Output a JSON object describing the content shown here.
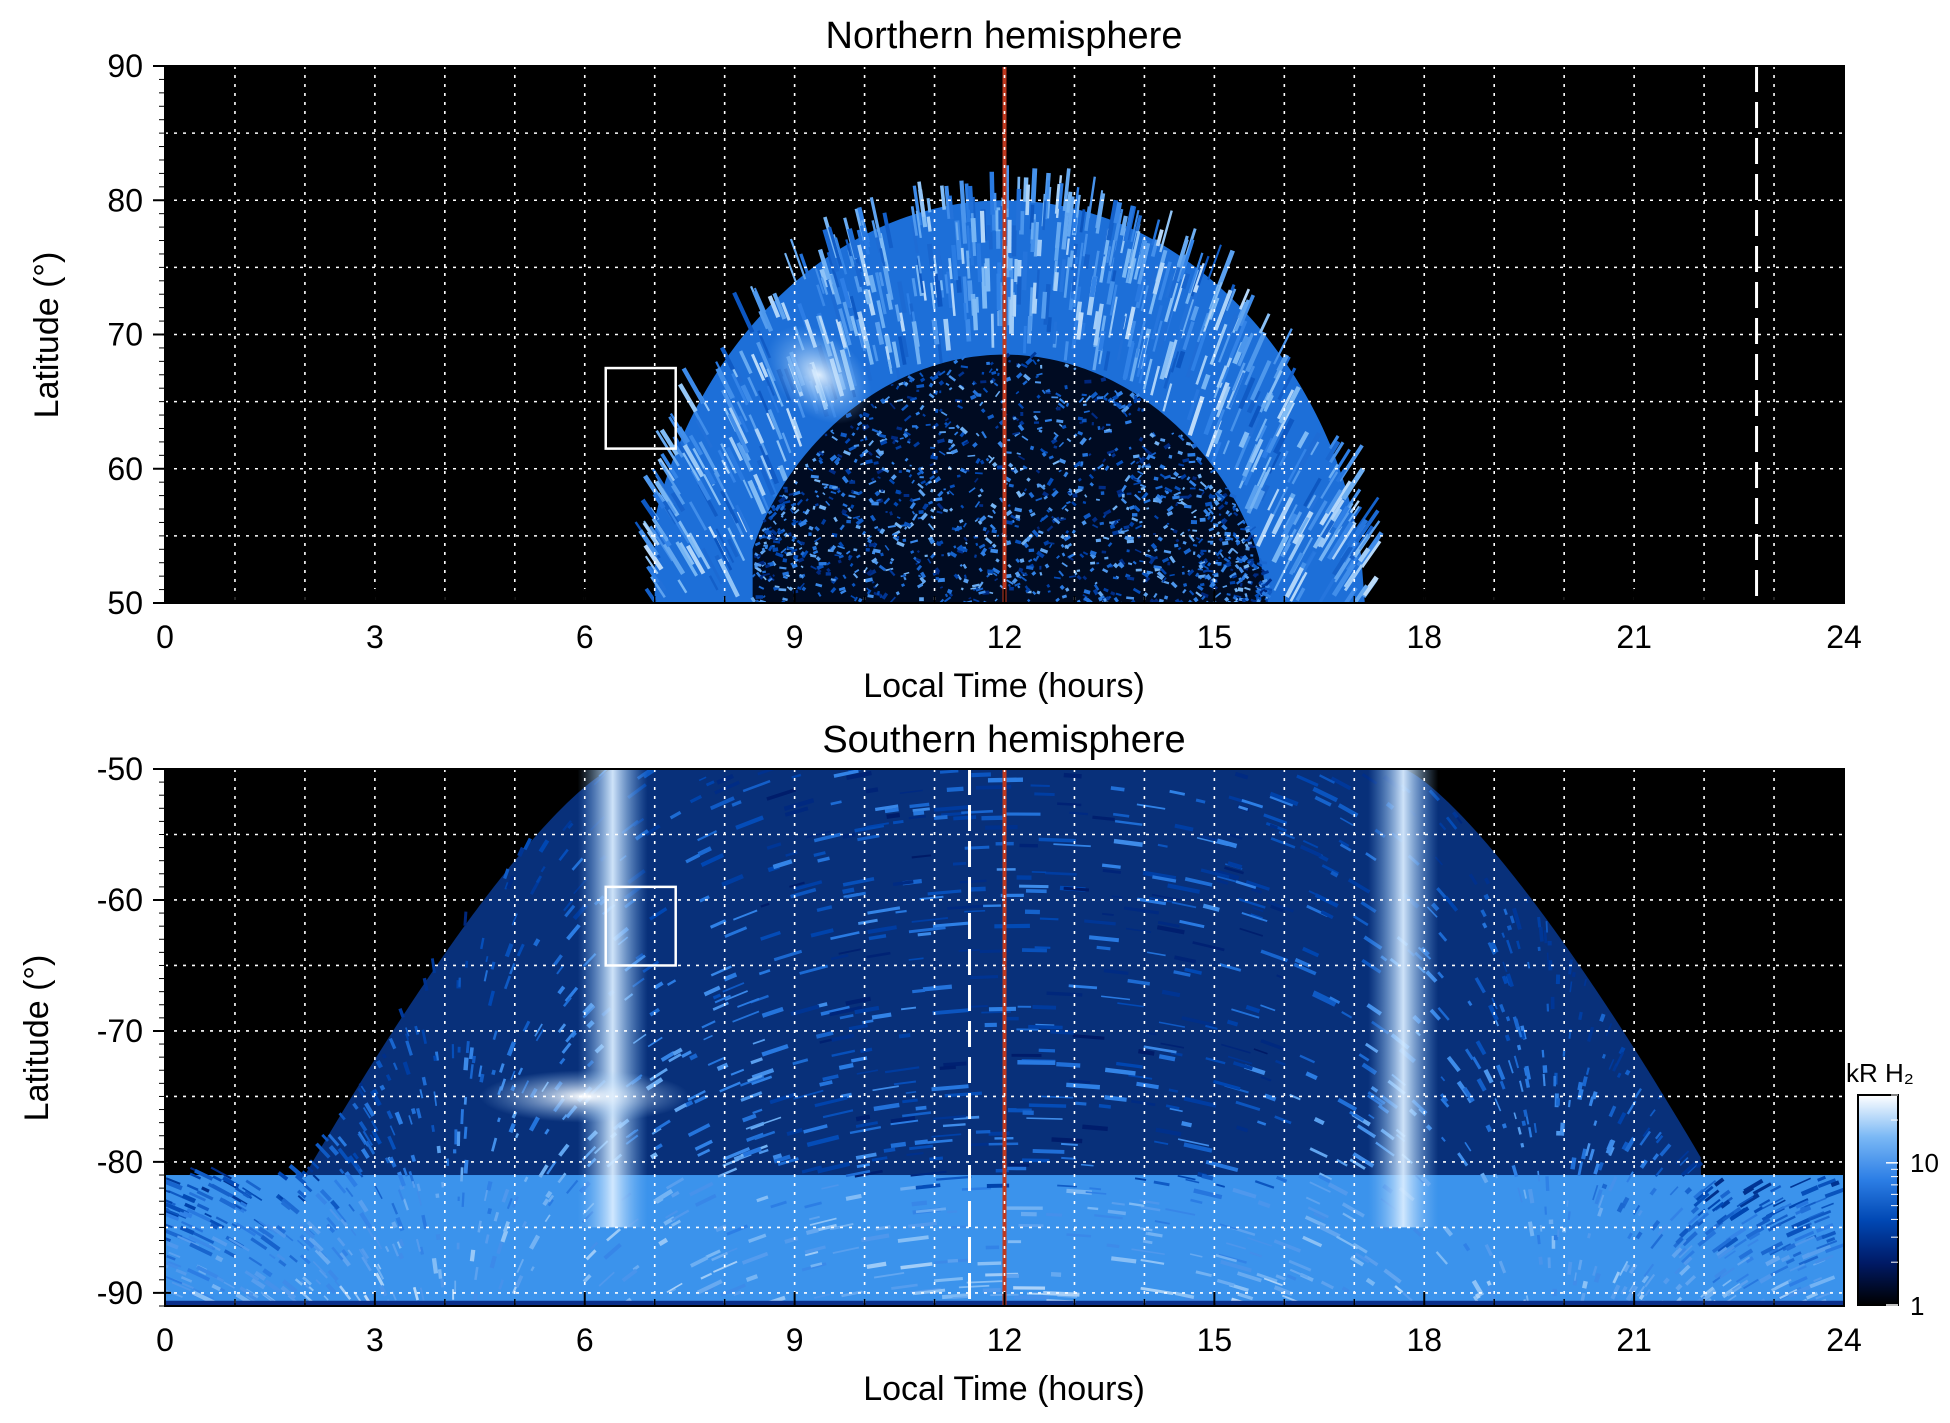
{
  "chart_data": [
    {
      "type": "heatmap",
      "title": "Northern hemisphere",
      "xlabel": "Local Time (hours)",
      "ylabel": "Latitude (°)",
      "xlim": [
        0,
        24
      ],
      "ylim": [
        50,
        90
      ],
      "x_ticks": [
        "0",
        "3",
        "6",
        "9",
        "12",
        "15",
        "18",
        "21",
        "24"
      ],
      "y_ticks": [
        "90",
        "80",
        "70",
        "60",
        "50"
      ],
      "grid": true,
      "background_color": "#000000",
      "auroral_oval": {
        "lt_start": 7.0,
        "lt_end": 17.3,
        "outer_peak_lat": 80,
        "inner_peak_lat": 68.5,
        "bright_region": {
          "lt": [
            8.5,
            10.2
          ],
          "lat": [
            64,
            70
          ]
        }
      },
      "noon_line_lt": 12,
      "noon_line_color": "#c0391f",
      "dashed_line_lt": 22.75,
      "box": {
        "lt": [
          6.3,
          7.3
        ],
        "lat": [
          61.5,
          67.5
        ]
      }
    },
    {
      "type": "heatmap",
      "title": "Southern hemisphere",
      "xlabel": "Local Time (hours)",
      "ylabel": "Latitude (°)",
      "xlim": [
        0,
        24
      ],
      "ylim": [
        -91,
        -50
      ],
      "x_ticks": [
        "0",
        "3",
        "6",
        "9",
        "12",
        "15",
        "18",
        "21",
        "24"
      ],
      "y_ticks": [
        "-50",
        "-60",
        "-70",
        "-80",
        "-90"
      ],
      "grid": true,
      "background_color": "#000000",
      "bright_bands_lt": [
        6.4,
        17.7
      ],
      "bright_spot": {
        "lt": [
          4.5,
          7.5
        ],
        "lat": [
          -73,
          -77
        ]
      },
      "noon_line_lt": 12,
      "noon_line_color": "#c0391f",
      "dashed_line_lt": 11.5,
      "box": {
        "lt": [
          6.3,
          7.3
        ],
        "lat": [
          -59,
          -65
        ]
      }
    }
  ],
  "colorbar": {
    "label": "kR H₂",
    "ticks": [
      "1",
      "10"
    ],
    "scale": "log",
    "range": [
      1,
      30
    ],
    "colors": [
      "#000000",
      "#001a66",
      "#0047b3",
      "#2d7fe6",
      "#7ab8f5",
      "#ffffff"
    ]
  }
}
